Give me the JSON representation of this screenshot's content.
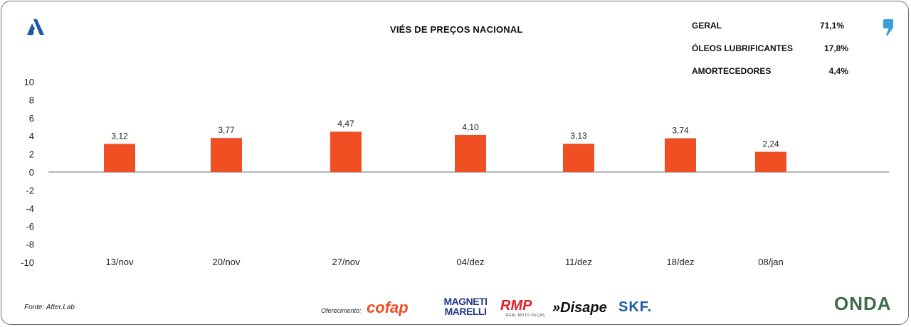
{
  "chart_data": {
    "type": "bar",
    "title": "VIÉS DE PREÇOS NACIONAL",
    "categories": [
      "13/nov",
      "20/nov",
      "27/nov",
      "04/dez",
      "11/dez",
      "18/dez",
      "08/jan"
    ],
    "values": [
      3.12,
      3.77,
      4.47,
      4.1,
      3.13,
      3.74,
      2.24
    ],
    "value_labels": [
      "3,12",
      "3,77",
      "4,47",
      "4,10",
      "3,13",
      "3,74",
      "2,24"
    ],
    "ylim": [
      -10,
      10
    ],
    "yticks": [
      "10",
      "8",
      "6",
      "4",
      "2",
      "0",
      "-2",
      "-4",
      "-6",
      "-8",
      "-10"
    ],
    "bar_color": "#f04e23",
    "grid": false
  },
  "stats": [
    {
      "label": "GERAL",
      "value": "71,1%"
    },
    {
      "label": "ÓLEOS LUBRIFICANTES",
      "value": "17,8%"
    },
    {
      "label": "AMORTECEDORES",
      "value": "4,4%"
    }
  ],
  "footer": {
    "source": "Fonte: After.Lab",
    "offer_label": "Oferecimento:"
  },
  "sponsors": {
    "cofap": "cofap",
    "magneti": "MAGNETI MARELLI",
    "rmp": "RMP",
    "rmp_sub": "REAL MOTO PEÇAS",
    "disape": "»Disape",
    "skf": "SKF."
  },
  "brand": {
    "onda": "ONDA"
  },
  "icons": {
    "top_left": "a-logo-icon",
    "top_right": "quote-icon"
  }
}
